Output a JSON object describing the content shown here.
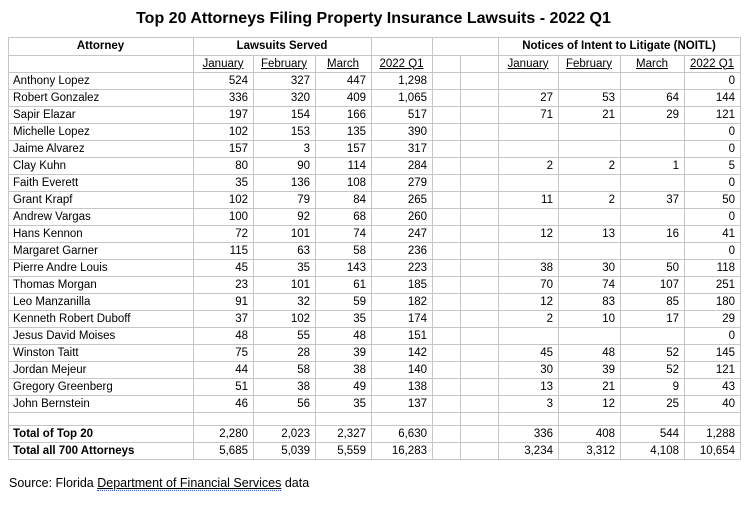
{
  "title": "Top 20 Attorneys Filing Property Insurance Lawsuits - 2022 Q1",
  "table": {
    "group_headers": {
      "attorney": "Attorney",
      "lawsuits": "Lawsuits Served",
      "noitl": "Notices of Intent to Litigate (NOITL)"
    },
    "sub_headers": [
      "January",
      "February",
      "March",
      "2022 Q1"
    ],
    "rows": [
      {
        "name": "Anthony Lopez",
        "ls": [
          "524",
          "327",
          "447",
          "1,298"
        ],
        "no": [
          "",
          "",
          "",
          "0"
        ]
      },
      {
        "name": "Robert Gonzalez",
        "ls": [
          "336",
          "320",
          "409",
          "1,065"
        ],
        "no": [
          "27",
          "53",
          "64",
          "144"
        ]
      },
      {
        "name": "Sapir Elazar",
        "ls": [
          "197",
          "154",
          "166",
          "517"
        ],
        "no": [
          "71",
          "21",
          "29",
          "121"
        ]
      },
      {
        "name": "Michelle Lopez",
        "ls": [
          "102",
          "153",
          "135",
          "390"
        ],
        "no": [
          "",
          "",
          "",
          "0"
        ]
      },
      {
        "name": "Jaime Alvarez",
        "ls": [
          "157",
          "3",
          "157",
          "317"
        ],
        "no": [
          "",
          "",
          "",
          "0"
        ]
      },
      {
        "name": "Clay Kuhn",
        "ls": [
          "80",
          "90",
          "114",
          "284"
        ],
        "no": [
          "2",
          "2",
          "1",
          "5"
        ]
      },
      {
        "name": "Faith Everett",
        "ls": [
          "35",
          "136",
          "108",
          "279"
        ],
        "no": [
          "",
          "",
          "",
          "0"
        ]
      },
      {
        "name": "Grant Krapf",
        "ls": [
          "102",
          "79",
          "84",
          "265"
        ],
        "no": [
          "11",
          "2",
          "37",
          "50"
        ]
      },
      {
        "name": "Andrew Vargas",
        "ls": [
          "100",
          "92",
          "68",
          "260"
        ],
        "no": [
          "",
          "",
          "",
          "0"
        ]
      },
      {
        "name": "Hans Kennon",
        "ls": [
          "72",
          "101",
          "74",
          "247"
        ],
        "no": [
          "12",
          "13",
          "16",
          "41"
        ]
      },
      {
        "name": "Margaret Garner",
        "ls": [
          "115",
          "63",
          "58",
          "236"
        ],
        "no": [
          "",
          "",
          "",
          "0"
        ]
      },
      {
        "name": "Pierre Andre Louis",
        "ls": [
          "45",
          "35",
          "143",
          "223"
        ],
        "no": [
          "38",
          "30",
          "50",
          "118"
        ]
      },
      {
        "name": "Thomas Morgan",
        "ls": [
          "23",
          "101",
          "61",
          "185"
        ],
        "no": [
          "70",
          "74",
          "107",
          "251"
        ]
      },
      {
        "name": "Leo Manzanilla",
        "ls": [
          "91",
          "32",
          "59",
          "182"
        ],
        "no": [
          "12",
          "83",
          "85",
          "180"
        ]
      },
      {
        "name": "Kenneth Robert Duboff",
        "ls": [
          "37",
          "102",
          "35",
          "174"
        ],
        "no": [
          "2",
          "10",
          "17",
          "29"
        ]
      },
      {
        "name": "Jesus David Moises",
        "ls": [
          "48",
          "55",
          "48",
          "151"
        ],
        "no": [
          "",
          "",
          "",
          "0"
        ]
      },
      {
        "name": "Winston Taitt",
        "ls": [
          "75",
          "28",
          "39",
          "142"
        ],
        "no": [
          "45",
          "48",
          "52",
          "145"
        ]
      },
      {
        "name": "Jordan Mejeur",
        "ls": [
          "44",
          "58",
          "38",
          "140"
        ],
        "no": [
          "30",
          "39",
          "52",
          "121"
        ]
      },
      {
        "name": "Gregory Greenberg",
        "ls": [
          "51",
          "38",
          "49",
          "138"
        ],
        "no": [
          "13",
          "21",
          "9",
          "43"
        ]
      },
      {
        "name": "John Bernstein",
        "ls": [
          "46",
          "56",
          "35",
          "137"
        ],
        "no": [
          "3",
          "12",
          "25",
          "40"
        ]
      }
    ],
    "totals": [
      {
        "name": "Total of Top 20",
        "ls": [
          "2,280",
          "2,023",
          "2,327",
          "6,630"
        ],
        "no": [
          "336",
          "408",
          "544",
          "1,288"
        ]
      },
      {
        "name": "Total all 700 Attorneys",
        "ls": [
          "5,685",
          "5,039",
          "5,559",
          "16,283"
        ],
        "no": [
          "3,234",
          "3,312",
          "4,108",
          "10,654"
        ]
      }
    ]
  },
  "source": {
    "prefix": "Source: Florida ",
    "link": "Department of Financial Services",
    "suffix": " data"
  },
  "colors": {
    "background": "#ffffff",
    "text": "#000000",
    "gridline": "#c6c6c6",
    "link_dotted_underline": "#3355ee"
  },
  "chart_data": {
    "type": "table",
    "title": "Top 20 Attorneys Filing Property Insurance Lawsuits - 2022 Q1",
    "column_groups": [
      "Lawsuits Served",
      "Notices of Intent to Litigate (NOITL)"
    ],
    "columns": [
      "Attorney",
      "Lawsuits Served January",
      "Lawsuits Served February",
      "Lawsuits Served March",
      "Lawsuits Served 2022 Q1",
      "NOITL January",
      "NOITL February",
      "NOITL March",
      "NOITL 2022 Q1"
    ],
    "rows": [
      [
        "Anthony Lopez",
        524,
        327,
        447,
        1298,
        null,
        null,
        null,
        0
      ],
      [
        "Robert Gonzalez",
        336,
        320,
        409,
        1065,
        27,
        53,
        64,
        144
      ],
      [
        "Sapir Elazar",
        197,
        154,
        166,
        517,
        71,
        21,
        29,
        121
      ],
      [
        "Michelle Lopez",
        102,
        153,
        135,
        390,
        null,
        null,
        null,
        0
      ],
      [
        "Jaime Alvarez",
        157,
        3,
        157,
        317,
        null,
        null,
        null,
        0
      ],
      [
        "Clay Kuhn",
        80,
        90,
        114,
        284,
        2,
        2,
        1,
        5
      ],
      [
        "Faith Everett",
        35,
        136,
        108,
        279,
        null,
        null,
        null,
        0
      ],
      [
        "Grant Krapf",
        102,
        79,
        84,
        265,
        11,
        2,
        37,
        50
      ],
      [
        "Andrew Vargas",
        100,
        92,
        68,
        260,
        null,
        null,
        null,
        0
      ],
      [
        "Hans Kennon",
        72,
        101,
        74,
        247,
        12,
        13,
        16,
        41
      ],
      [
        "Margaret Garner",
        115,
        63,
        58,
        236,
        null,
        null,
        null,
        0
      ],
      [
        "Pierre Andre Louis",
        45,
        35,
        143,
        223,
        38,
        30,
        50,
        118
      ],
      [
        "Thomas Morgan",
        23,
        101,
        61,
        185,
        70,
        74,
        107,
        251
      ],
      [
        "Leo Manzanilla",
        91,
        32,
        59,
        182,
        12,
        83,
        85,
        180
      ],
      [
        "Kenneth Robert Duboff",
        37,
        102,
        35,
        174,
        2,
        10,
        17,
        29
      ],
      [
        "Jesus David Moises",
        48,
        55,
        48,
        151,
        null,
        null,
        null,
        0
      ],
      [
        "Winston Taitt",
        75,
        28,
        39,
        142,
        45,
        48,
        52,
        145
      ],
      [
        "Jordan Mejeur",
        44,
        58,
        38,
        140,
        30,
        39,
        52,
        121
      ],
      [
        "Gregory Greenberg",
        51,
        38,
        49,
        138,
        13,
        21,
        9,
        43
      ],
      [
        "John Bernstein",
        46,
        56,
        35,
        137,
        3,
        12,
        25,
        40
      ]
    ],
    "totals": [
      [
        "Total of Top 20",
        2280,
        2023,
        2327,
        6630,
        336,
        408,
        544,
        1288
      ],
      [
        "Total all 700 Attorneys",
        5685,
        5039,
        5559,
        16283,
        3234,
        3312,
        4108,
        10654
      ]
    ],
    "source": "Source: Florida Department of Financial Services data"
  }
}
